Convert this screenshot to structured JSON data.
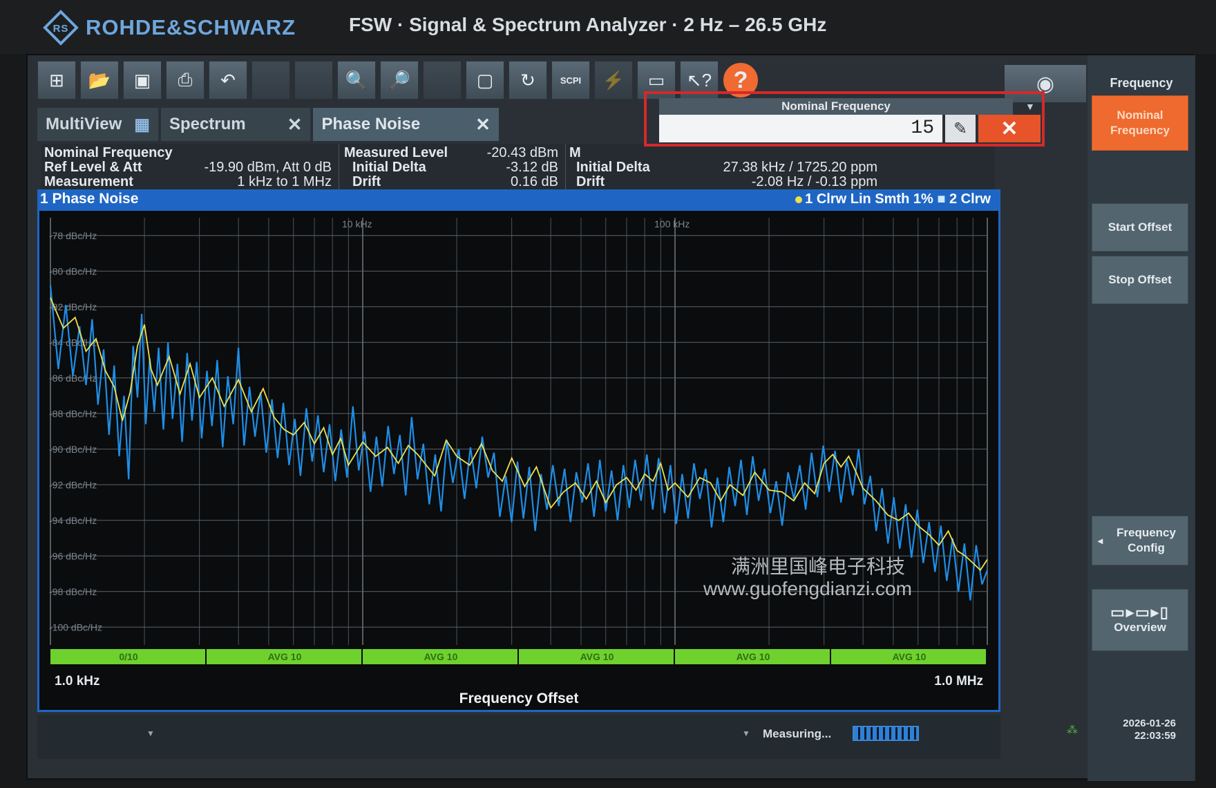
{
  "header": {
    "brand": "ROHDE&SCHWARZ",
    "title": "FSW · Signal & Spectrum Analyzer · 2 Hz – 26.5 GHz"
  },
  "toolbar": {
    "scpi_label": "SCPI",
    "help_label": "?"
  },
  "tabs": [
    {
      "label": "MultiView"
    },
    {
      "label": "Spectrum"
    },
    {
      "label": "Phase Noise"
    }
  ],
  "nominal_dialog": {
    "title": "Nominal Frequency",
    "value": "15"
  },
  "info": {
    "left": [
      {
        "label": "Nominal Frequency",
        "value": ""
      },
      {
        "label": "Ref Level & Att",
        "value": "-19.90 dBm, Att 0 dB"
      },
      {
        "label": "Measurement",
        "value": "1 kHz to 1 MHz"
      }
    ],
    "middle": [
      {
        "label": "Measured Level",
        "value": "-20.43 dBm"
      },
      {
        "label": "Initial Delta",
        "value": "-3.12 dB"
      },
      {
        "label": "Drift",
        "value": "0.16 dB"
      }
    ],
    "right": [
      {
        "label": "M",
        "value": ""
      },
      {
        "label": "Initial Delta",
        "value": "27.38 kHz / 1725.20 ppm"
      },
      {
        "label": "Drift",
        "value": "-2.08 Hz / -0.13 ppm"
      }
    ]
  },
  "trace_bar": {
    "title": "1 Phase Noise",
    "legend_1": "1 Clrw Lin Smth 1%",
    "legend_2": "2 Clrw"
  },
  "side_panel": {
    "title": "Frequency",
    "buttons": [
      {
        "label": "Nominal Frequency",
        "active": true
      },
      {
        "label": "Start Offset",
        "active": false
      },
      {
        "label": "Stop Offset",
        "active": false
      },
      {
        "label": "Frequency Config",
        "active": false
      },
      {
        "label": "Overview",
        "active": false
      }
    ]
  },
  "status": {
    "measuring": "Measuring...",
    "date": "2026-01-26",
    "time": "22:03:59"
  },
  "watermark": {
    "line1": "满洲里国峰电子科技",
    "line2": "www.guofengdianzi.com"
  },
  "colors": {
    "trace_raw": "#1f8ee6",
    "trace_smooth": "#f1e04a",
    "accent": "#ee6a2e",
    "title_bar": "#1f66c4",
    "avg_bar": "#6fd12e"
  },
  "chart_data": {
    "type": "line",
    "title": "",
    "xlabel": "Frequency Offset",
    "ylabel": "",
    "x_scale": "log",
    "xlim": [
      1000,
      1000000
    ],
    "ylim": [
      -101,
      -77
    ],
    "x_start_label": "1.0 kHz",
    "x_stop_label": "1.0 MHz",
    "x_tick_labels": [
      {
        "x": 10000,
        "label": "10 kHz"
      },
      {
        "x": 100000,
        "label": "100 kHz"
      }
    ],
    "y_ticks": [
      -78,
      -80,
      -82,
      -84,
      -86,
      -88,
      -90,
      -92,
      -94,
      -96,
      -98,
      -100
    ],
    "y_tick_unit": " dBc/Hz",
    "avg_segments": [
      "0/10",
      "AVG 10",
      "AVG 10",
      "AVG 10",
      "AVG 10",
      "AVG 10"
    ],
    "series": [
      {
        "values": [
          [
            1000,
            -81.5
          ],
          [
            1100,
            -83.2
          ],
          [
            1200,
            -82.6
          ],
          [
            1300,
            -84.5
          ],
          [
            1400,
            -83.8
          ],
          [
            1500,
            -85.6
          ],
          [
            1600,
            -86.5
          ],
          [
            1700,
            -88.4
          ],
          [
            1800,
            -86.8
          ],
          [
            1900,
            -84.2
          ],
          [
            2000,
            -83.0
          ],
          [
            2100,
            -85.5
          ],
          [
            2200,
            -86.4
          ],
          [
            2400,
            -84.8
          ],
          [
            2600,
            -86.9
          ],
          [
            2800,
            -85.2
          ],
          [
            3000,
            -87.1
          ],
          [
            3300,
            -86.0
          ],
          [
            3600,
            -87.6
          ],
          [
            4000,
            -86.1
          ],
          [
            4400,
            -87.9
          ],
          [
            4800,
            -86.6
          ],
          [
            5200,
            -88.2
          ],
          [
            5600,
            -88.9
          ],
          [
            6000,
            -89.2
          ],
          [
            6500,
            -88.5
          ],
          [
            7000,
            -89.7
          ],
          [
            7500,
            -88.8
          ],
          [
            8000,
            -90.3
          ],
          [
            8500,
            -89.4
          ],
          [
            9000,
            -90.9
          ],
          [
            10000,
            -89.6
          ],
          [
            11000,
            -90.4
          ],
          [
            12000,
            -89.9
          ],
          [
            13000,
            -90.8
          ],
          [
            14000,
            -89.8
          ],
          [
            15000,
            -90.3
          ],
          [
            17000,
            -91.5
          ],
          [
            18500,
            -89.5
          ],
          [
            20000,
            -90.4
          ],
          [
            22000,
            -90.9
          ],
          [
            24000,
            -89.7
          ],
          [
            26000,
            -91.2
          ],
          [
            28000,
            -91.8
          ],
          [
            30000,
            -90.5
          ],
          [
            33000,
            -92.1
          ],
          [
            36000,
            -91.0
          ],
          [
            40000,
            -93.3
          ],
          [
            44000,
            -92.4
          ],
          [
            48000,
            -91.9
          ],
          [
            52000,
            -92.8
          ],
          [
            56000,
            -91.8
          ],
          [
            60000,
            -93.0
          ],
          [
            65000,
            -92.0
          ],
          [
            70000,
            -91.6
          ],
          [
            75000,
            -92.3
          ],
          [
            80000,
            -91.4
          ],
          [
            85000,
            -91.8
          ],
          [
            90000,
            -90.8
          ],
          [
            95000,
            -92.3
          ],
          [
            100000,
            -91.9
          ],
          [
            110000,
            -92.7
          ],
          [
            120000,
            -91.6
          ],
          [
            130000,
            -91.9
          ],
          [
            140000,
            -92.9
          ],
          [
            150000,
            -92.0
          ],
          [
            165000,
            -92.6
          ],
          [
            180000,
            -91.3
          ],
          [
            200000,
            -92.3
          ],
          [
            220000,
            -92.4
          ],
          [
            240000,
            -92.9
          ],
          [
            260000,
            -91.9
          ],
          [
            280000,
            -92.5
          ],
          [
            300000,
            -90.8
          ],
          [
            320000,
            -90.3
          ],
          [
            340000,
            -91.0
          ],
          [
            360000,
            -90.4
          ],
          [
            380000,
            -91.3
          ],
          [
            400000,
            -92.2
          ],
          [
            440000,
            -92.9
          ],
          [
            480000,
            -93.7
          ],
          [
            520000,
            -94.0
          ],
          [
            560000,
            -93.6
          ],
          [
            600000,
            -94.3
          ],
          [
            650000,
            -94.8
          ],
          [
            700000,
            -95.4
          ],
          [
            750000,
            -94.6
          ],
          [
            800000,
            -95.7
          ],
          [
            850000,
            -96.0
          ],
          [
            900000,
            -96.4
          ],
          [
            950000,
            -96.8
          ],
          [
            1000000,
            -96.2
          ]
        ]
      },
      {
        "values": [
          [
            1000,
            -80.8
          ],
          [
            1060,
            -85.5
          ],
          [
            1120,
            -81.9
          ],
          [
            1180,
            -85.9
          ],
          [
            1240,
            -83.1
          ],
          [
            1300,
            -86.4
          ],
          [
            1360,
            -82.7
          ],
          [
            1420,
            -87.5
          ],
          [
            1480,
            -84.4
          ],
          [
            1540,
            -89.2
          ],
          [
            1600,
            -85.3
          ],
          [
            1660,
            -90.4
          ],
          [
            1720,
            -87.0
          ],
          [
            1780,
            -91.7
          ],
          [
            1840,
            -84.2
          ],
          [
            1900,
            -87.1
          ],
          [
            1960,
            -82.4
          ],
          [
            2020,
            -88.6
          ],
          [
            2080,
            -84.9
          ],
          [
            2150,
            -87.9
          ],
          [
            2220,
            -84.3
          ],
          [
            2300,
            -88.9
          ],
          [
            2380,
            -84.0
          ],
          [
            2460,
            -88.3
          ],
          [
            2550,
            -85.2
          ],
          [
            2640,
            -89.6
          ],
          [
            2740,
            -84.6
          ],
          [
            2840,
            -88.4
          ],
          [
            2940,
            -85.1
          ],
          [
            3050,
            -89.4
          ],
          [
            3170,
            -85.6
          ],
          [
            3290,
            -88.7
          ],
          [
            3420,
            -85.0
          ],
          [
            3560,
            -89.9
          ],
          [
            3700,
            -85.9
          ],
          [
            3850,
            -88.6
          ],
          [
            4000,
            -84.3
          ],
          [
            4170,
            -89.8
          ],
          [
            4340,
            -86.5
          ],
          [
            4520,
            -89.3
          ],
          [
            4710,
            -86.8
          ],
          [
            4910,
            -90.2
          ],
          [
            5120,
            -87.2
          ],
          [
            5340,
            -90.5
          ],
          [
            5570,
            -87.4
          ],
          [
            5810,
            -90.9
          ],
          [
            6060,
            -88.3
          ],
          [
            6320,
            -91.5
          ],
          [
            6600,
            -87.7
          ],
          [
            6890,
            -90.7
          ],
          [
            7190,
            -88.1
          ],
          [
            7500,
            -91.3
          ],
          [
            7830,
            -88.6
          ],
          [
            8170,
            -91.8
          ],
          [
            8530,
            -88.9
          ],
          [
            8910,
            -91.6
          ],
          [
            9300,
            -87.6
          ],
          [
            9710,
            -91.2
          ],
          [
            10140,
            -89.0
          ],
          [
            10590,
            -92.4
          ],
          [
            11060,
            -89.3
          ],
          [
            11550,
            -92.1
          ],
          [
            12060,
            -88.7
          ],
          [
            12590,
            -91.4
          ],
          [
            13150,
            -89.2
          ],
          [
            13730,
            -92.6
          ],
          [
            14340,
            -88.2
          ],
          [
            14980,
            -91.7
          ],
          [
            15640,
            -89.7
          ],
          [
            16330,
            -93.1
          ],
          [
            17060,
            -90.3
          ],
          [
            17820,
            -93.5
          ],
          [
            18610,
            -89.5
          ],
          [
            19430,
            -91.9
          ],
          [
            20290,
            -90.0
          ],
          [
            21190,
            -92.8
          ],
          [
            22130,
            -89.9
          ],
          [
            23110,
            -92.2
          ],
          [
            24140,
            -89.3
          ],
          [
            25210,
            -91.6
          ],
          [
            26330,
            -90.2
          ],
          [
            27490,
            -93.8
          ],
          [
            28710,
            -91.5
          ],
          [
            29980,
            -94.1
          ],
          [
            31310,
            -90.7
          ],
          [
            32700,
            -93.9
          ],
          [
            34150,
            -91.0
          ],
          [
            35660,
            -94.6
          ],
          [
            37240,
            -91.4
          ],
          [
            38890,
            -93.4
          ],
          [
            40620,
            -90.9
          ],
          [
            42420,
            -93.2
          ],
          [
            44300,
            -91.1
          ],
          [
            46260,
            -94.1
          ],
          [
            48310,
            -91.3
          ],
          [
            50450,
            -93.0
          ],
          [
            52690,
            -90.8
          ],
          [
            55020,
            -93.8
          ],
          [
            57460,
            -90.6
          ],
          [
            60000,
            -93.5
          ],
          [
            62660,
            -91.2
          ],
          [
            65440,
            -94.0
          ],
          [
            68340,
            -90.9
          ],
          [
            71370,
            -93.3
          ],
          [
            74530,
            -90.6
          ],
          [
            77830,
            -92.9
          ],
          [
            81280,
            -90.3
          ],
          [
            84880,
            -93.4
          ],
          [
            88640,
            -90.5
          ],
          [
            92570,
            -93.6
          ],
          [
            96670,
            -90.9
          ],
          [
            100950,
            -94.2
          ],
          [
            105420,
            -91.4
          ],
          [
            110090,
            -93.9
          ],
          [
            114970,
            -90.8
          ],
          [
            120060,
            -92.8
          ],
          [
            125380,
            -91.1
          ],
          [
            130940,
            -94.4
          ],
          [
            136740,
            -91.6
          ],
          [
            142800,
            -94.1
          ],
          [
            149130,
            -91.0
          ],
          [
            155740,
            -93.2
          ],
          [
            162640,
            -90.6
          ],
          [
            169850,
            -93.7
          ],
          [
            177370,
            -90.4
          ],
          [
            185230,
            -92.9
          ],
          [
            193440,
            -91.1
          ],
          [
            202010,
            -93.6
          ],
          [
            210960,
            -91.8
          ],
          [
            220310,
            -94.3
          ],
          [
            230070,
            -91.3
          ],
          [
            240270,
            -92.8
          ],
          [
            250920,
            -90.9
          ],
          [
            262030,
            -93.4
          ],
          [
            273640,
            -90.2
          ],
          [
            285760,
            -92.7
          ],
          [
            298420,
            -89.8
          ],
          [
            311640,
            -92.4
          ],
          [
            325450,
            -90.1
          ],
          [
            339870,
            -93.0
          ],
          [
            354930,
            -90.6
          ],
          [
            370650,
            -92.6
          ],
          [
            387070,
            -90.0
          ],
          [
            404220,
            -93.1
          ],
          [
            422130,
            -91.5
          ],
          [
            440830,
            -94.6
          ],
          [
            460360,
            -92.2
          ],
          [
            480750,
            -95.3
          ],
          [
            502050,
            -92.7
          ],
          [
            524290,
            -95.6
          ],
          [
            547520,
            -93.1
          ],
          [
            571780,
            -96.1
          ],
          [
            597120,
            -93.4
          ],
          [
            623580,
            -96.4
          ],
          [
            651200,
            -94.1
          ],
          [
            680050,
            -96.9
          ],
          [
            710180,
            -94.3
          ],
          [
            741650,
            -97.4
          ],
          [
            774510,
            -95.0
          ],
          [
            808820,
            -98.0
          ],
          [
            844650,
            -95.3
          ],
          [
            882070,
            -98.5
          ],
          [
            921140,
            -95.4
          ],
          [
            961950,
            -97.6
          ],
          [
            1000000,
            -96.8
          ]
        ]
      }
    ]
  }
}
